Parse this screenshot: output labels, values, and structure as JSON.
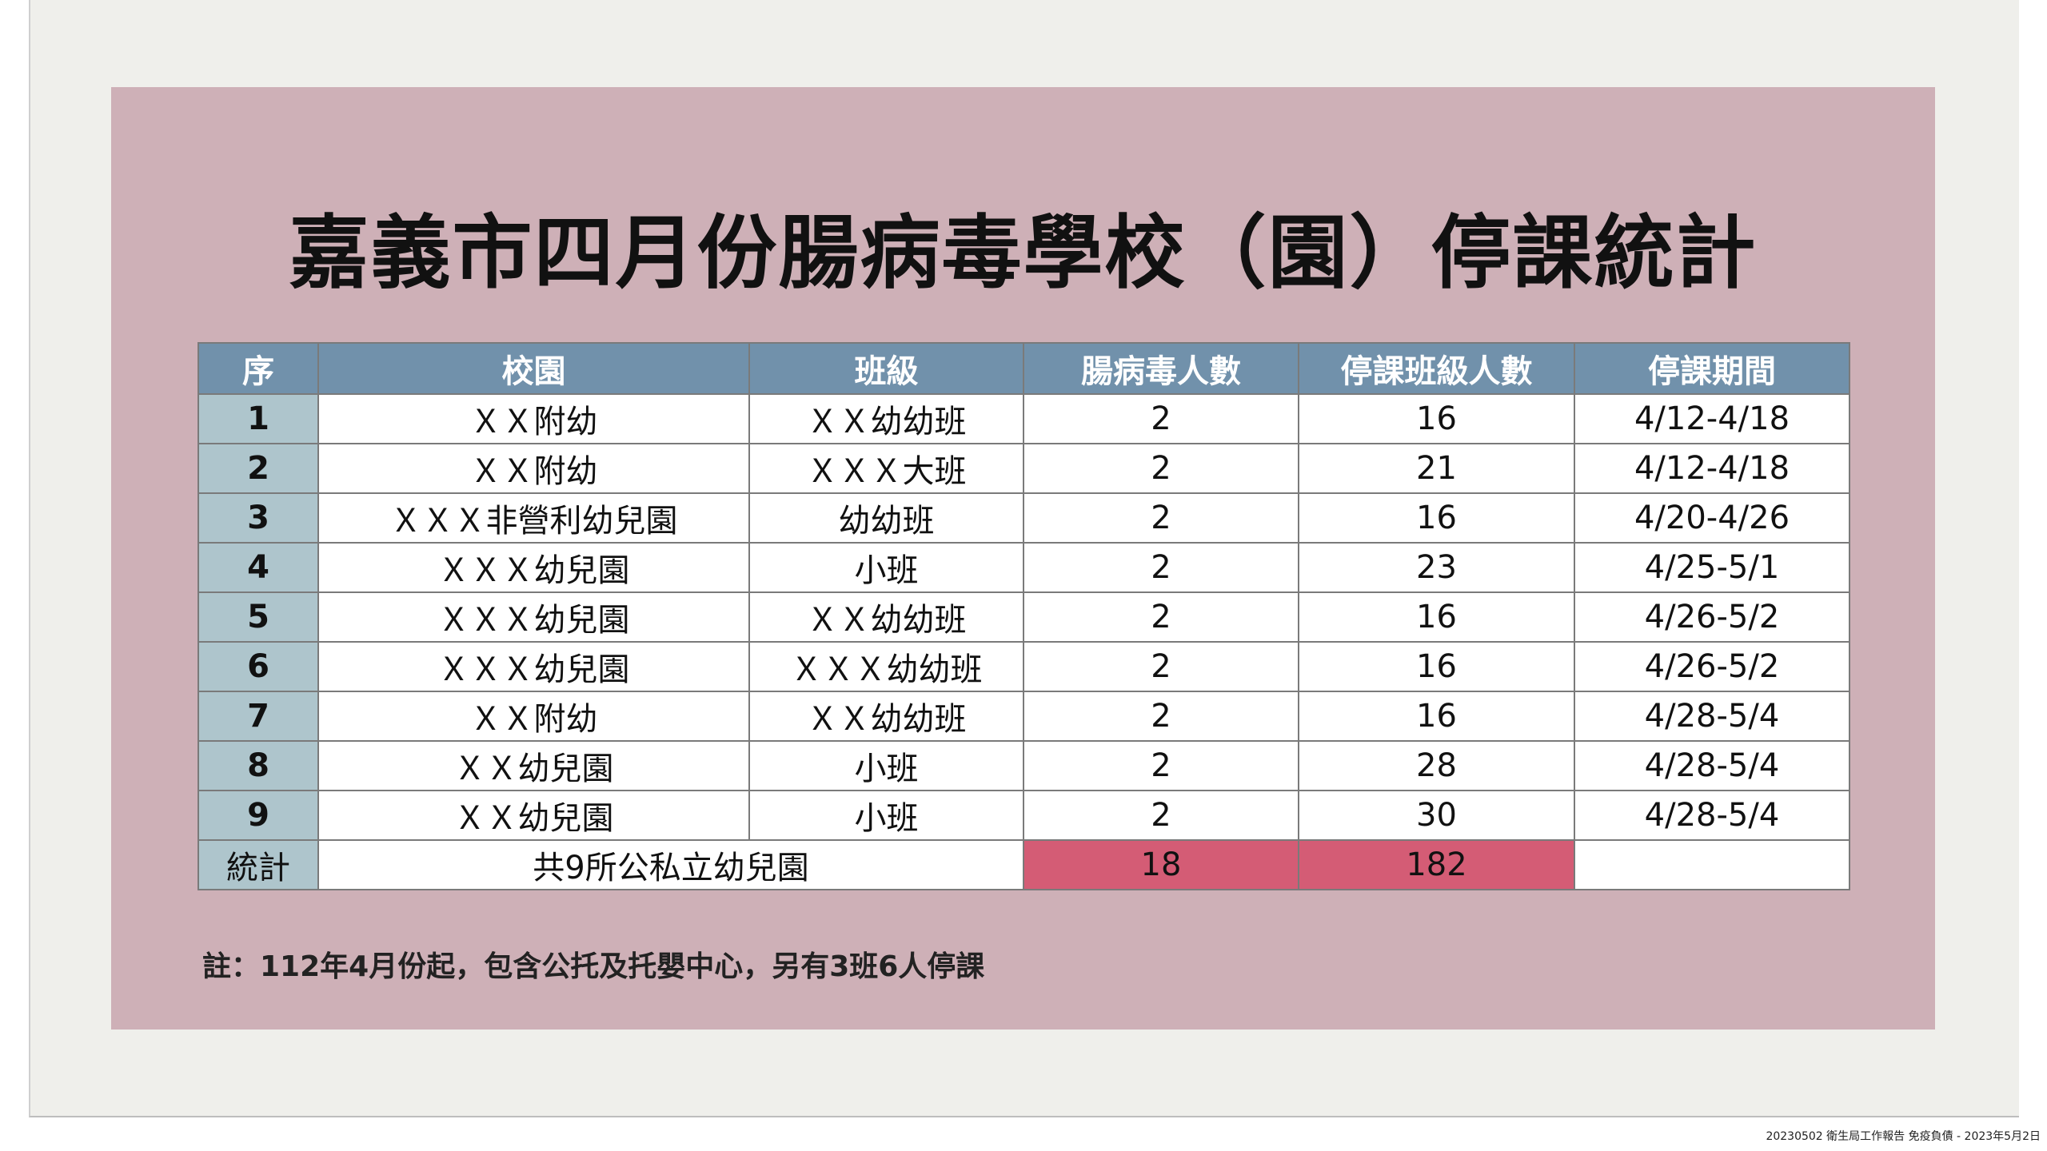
{
  "title": "嘉義市四月份腸病毒學校（園）停課統計",
  "table": {
    "headers": [
      "序",
      "校園",
      "班級",
      "腸病毒人數",
      "停課班級人數",
      "停課期間"
    ],
    "rows": [
      [
        "1",
        "ＸＸ附幼",
        "ＸＸ幼幼班",
        "2",
        "16",
        "4/12-4/18"
      ],
      [
        "2",
        "ＸＸ附幼",
        "ＸＸＸ大班",
        "2",
        "21",
        "4/12-4/18"
      ],
      [
        "3",
        "ＸＸＸ非營利幼兒園",
        "幼幼班",
        "2",
        "16",
        "4/20-4/26"
      ],
      [
        "4",
        "ＸＸＸ幼兒園",
        "小班",
        "2",
        "23",
        "4/25-5/1"
      ],
      [
        "5",
        "ＸＸＸ幼兒園",
        "ＸＸ幼幼班",
        "2",
        "16",
        "4/26-5/2"
      ],
      [
        "6",
        "ＸＸＸ幼兒園",
        "ＸＸＸ幼幼班",
        "2",
        "16",
        "4/26-5/2"
      ],
      [
        "7",
        "ＸＸ附幼",
        "ＸＸ幼幼班",
        "2",
        "16",
        "4/28-5/4"
      ],
      [
        "8",
        "ＸＸ幼兒園",
        "小班",
        "2",
        "28",
        "4/28-5/4"
      ],
      [
        "9",
        "ＸＸ幼兒園",
        "小班",
        "2",
        "30",
        "4/28-5/4"
      ]
    ],
    "total": {
      "label": "統計",
      "description": "共9所公私立幼兒園",
      "cases": "18",
      "students": "182"
    }
  },
  "note": "註：112年4月份起，包含公托及托嬰中心，另有3班6人停課",
  "footer": "20230502 衛生局工作報告 免疫負債 - 2023年5月2日",
  "colors": {
    "panel": "#ceb0b7",
    "header": "#7191ab",
    "first_column": "#aec5cc",
    "highlight": "#d45c75"
  }
}
